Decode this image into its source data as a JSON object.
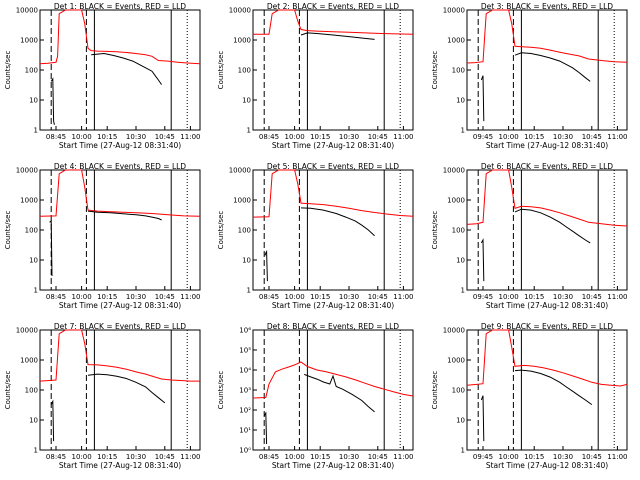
{
  "chart_data": [
    {
      "type": "line",
      "title": "Det 1: BLACK = Events, RED = LLD",
      "ylabel": "Counts/sec",
      "xlabel": "Start Time (27-Aug-12 08:31:40)",
      "x_ticks": [
        "08:45",
        "10:00",
        "10:15",
        "10:30",
        "10:45",
        "11:00"
      ],
      "y_ticks": [
        "1",
        "10",
        "100",
        "1000",
        "10000"
      ],
      "ylim": [
        1,
        12000
      ],
      "log_y": true,
      "grid": false,
      "series": [
        {
          "color": "#ff0000",
          "x": [
            0.0,
            0.05,
            0.1,
            0.11,
            0.12,
            0.16,
            0.26,
            0.28,
            0.3,
            0.32,
            0.36,
            0.42,
            0.48,
            0.54,
            0.6,
            0.66,
            0.7,
            0.74,
            0.8,
            0.86,
            0.92,
            1.0
          ],
          "y": [
            180,
            185,
            200,
            320,
            9000,
            12000,
            12000,
            4000,
            600,
            500,
            480,
            470,
            460,
            430,
            400,
            360,
            320,
            230,
            220,
            200,
            190,
            180
          ]
        },
        {
          "color": "#000000",
          "x": [
            0.07,
            0.075,
            0.08,
            0.085,
            0.09
          ],
          "y": [
            45,
            50,
            55,
            2,
            1.5
          ]
        },
        {
          "color": "#000000",
          "x": [
            0.32,
            0.36,
            0.4,
            0.46,
            0.52,
            0.58,
            0.62,
            0.66,
            0.7,
            0.72,
            0.74,
            0.76
          ],
          "y": [
            360,
            380,
            400,
            340,
            280,
            220,
            170,
            130,
            100,
            70,
            50,
            35
          ]
        }
      ]
    },
    {
      "type": "line",
      "title": "Det 2: BLACK = Events, RED = LLD",
      "ylabel": "Counts/sec",
      "xlabel": "Start Time (27-Aug-12 08:31:40)",
      "x_ticks": [
        "08:45",
        "10:00",
        "10:15",
        "10:30",
        "10:45",
        "11:00"
      ],
      "y_ticks": [
        "1",
        "10",
        "100",
        "1000",
        "10000"
      ],
      "ylim": [
        1,
        12000
      ],
      "log_y": true,
      "grid": false,
      "series": [
        {
          "color": "#ff0000",
          "x": [
            0.0,
            0.1,
            0.12,
            0.16,
            0.26,
            0.28,
            0.3,
            0.34,
            0.4,
            0.5,
            0.6,
            0.7,
            0.8,
            0.9,
            1.0
          ],
          "y": [
            1800,
            1800,
            9000,
            12000,
            12000,
            5000,
            2600,
            2400,
            2300,
            2200,
            2100,
            2000,
            1900,
            1850,
            1800
          ]
        },
        {
          "color": "#000000",
          "x": [
            0.3,
            0.34,
            0.4,
            0.5,
            0.6,
            0.7,
            0.76
          ],
          "y": [
            1700,
            2000,
            1900,
            1700,
            1500,
            1300,
            1200
          ]
        }
      ]
    },
    {
      "type": "line",
      "title": "Det 3: BLACK = Events, RED = LLD",
      "ylabel": "Counts/sec",
      "xlabel": "Start Time (27-Aug-12 08:31:40)",
      "x_ticks": [
        "09:45",
        "10:00",
        "10:15",
        "10:30",
        "10:45",
        "11:00"
      ],
      "y_ticks": [
        "1",
        "10",
        "100",
        "1000",
        "10000"
      ],
      "ylim": [
        1,
        12000
      ],
      "log_y": true,
      "grid": false,
      "series": [
        {
          "color": "#ff0000",
          "x": [
            0.0,
            0.05,
            0.1,
            0.12,
            0.16,
            0.26,
            0.28,
            0.3,
            0.34,
            0.4,
            0.46,
            0.52,
            0.58,
            0.64,
            0.7,
            0.76,
            0.84,
            0.92,
            1.0
          ],
          "y": [
            190,
            195,
            210,
            9000,
            12000,
            12000,
            4000,
            700,
            680,
            650,
            600,
            520,
            440,
            380,
            330,
            260,
            230,
            210,
            200
          ]
        },
        {
          "color": "#000000",
          "x": [
            0.09,
            0.095,
            0.1,
            0.105
          ],
          "y": [
            50,
            60,
            70,
            2
          ]
        },
        {
          "color": "#000000",
          "x": [
            0.3,
            0.34,
            0.4,
            0.46,
            0.52,
            0.58,
            0.62,
            0.66,
            0.7,
            0.74,
            0.77
          ],
          "y": [
            350,
            420,
            400,
            340,
            280,
            220,
            170,
            130,
            90,
            60,
            45
          ]
        }
      ]
    },
    {
      "type": "line",
      "title": "Det 4: BLACK = Events, RED = LLD",
      "ylabel": "Counts/sec",
      "xlabel": "Start Time (27-Aug-12 08:31:40)",
      "x_ticks": [
        "08:45",
        "10:00",
        "10:15",
        "10:30",
        "10:45",
        "11:00"
      ],
      "y_ticks": [
        "1",
        "10",
        "100",
        "1000",
        "10000"
      ],
      "ylim": [
        1,
        12000
      ],
      "log_y": true,
      "grid": false,
      "series": [
        {
          "color": "#ff0000",
          "x": [
            0.0,
            0.1,
            0.12,
            0.16,
            0.26,
            0.28,
            0.3,
            0.36,
            0.44,
            0.52,
            0.6,
            0.7,
            0.8,
            0.9,
            1.0
          ],
          "y": [
            320,
            330,
            9000,
            12000,
            12000,
            3000,
            520,
            480,
            460,
            440,
            420,
            400,
            360,
            330,
            320
          ]
        },
        {
          "color": "#000000",
          "x": [
            0.06,
            0.065,
            0.07,
            0.075
          ],
          "y": [
            200,
            210,
            220,
            3
          ]
        },
        {
          "color": "#000000",
          "x": [
            0.3,
            0.36,
            0.44,
            0.52,
            0.6,
            0.66,
            0.7,
            0.74,
            0.76
          ],
          "y": [
            480,
            440,
            420,
            390,
            360,
            330,
            300,
            270,
            240
          ]
        }
      ]
    },
    {
      "type": "line",
      "title": "Det 5: BLACK = Events, RED = LLD",
      "ylabel": "Counts/sec",
      "xlabel": "Start Time (27-Aug-12 08:31:40)",
      "x_ticks": [
        "08:45",
        "10:00",
        "10:15",
        "10:30",
        "10:45",
        "11:00"
      ],
      "y_ticks": [
        "1",
        "10",
        "100",
        "1000",
        "10000"
      ],
      "ylim": [
        1,
        12000
      ],
      "log_y": true,
      "grid": false,
      "series": [
        {
          "color": "#ff0000",
          "x": [
            0.0,
            0.1,
            0.12,
            0.16,
            0.26,
            0.28,
            0.3,
            0.36,
            0.44,
            0.52,
            0.6,
            0.68,
            0.76,
            0.84,
            0.92,
            1.0
          ],
          "y": [
            300,
            310,
            9000,
            12000,
            12000,
            4000,
            900,
            850,
            800,
            700,
            600,
            500,
            430,
            380,
            340,
            320
          ]
        },
        {
          "color": "#000000",
          "x": [
            0.075,
            0.08,
            0.085,
            0.09
          ],
          "y": [
            15,
            18,
            20,
            2
          ]
        },
        {
          "color": "#000000",
          "x": [
            0.3,
            0.36,
            0.44,
            0.52,
            0.58,
            0.64,
            0.68,
            0.72,
            0.76
          ],
          "y": [
            620,
            600,
            520,
            400,
            300,
            220,
            160,
            110,
            70
          ]
        }
      ]
    },
    {
      "type": "line",
      "title": "Det 6: BLACK = Events, RED = LLD",
      "ylabel": "Counts/sec",
      "xlabel": "Start Time (27-Aug-12 08:31:40)",
      "x_ticks": [
        "09:45",
        "10:00",
        "10:15",
        "10:30",
        "10:45",
        "11:00"
      ],
      "y_ticks": [
        "1",
        "10",
        "100",
        "1000",
        "10000"
      ],
      "ylim": [
        1,
        12000
      ],
      "log_y": true,
      "grid": false,
      "series": [
        {
          "color": "#ff0000",
          "x": [
            0.0,
            0.06,
            0.1,
            0.12,
            0.16,
            0.26,
            0.28,
            0.3,
            0.34,
            0.4,
            0.46,
            0.52,
            0.58,
            0.64,
            0.7,
            0.76,
            0.84,
            0.92,
            1.0
          ],
          "y": [
            170,
            180,
            200,
            9000,
            12000,
            12000,
            3000,
            600,
            700,
            680,
            620,
            520,
            420,
            330,
            260,
            200,
            180,
            160,
            150
          ]
        },
        {
          "color": "#000000",
          "x": [
            0.09,
            0.095,
            0.1,
            0.105
          ],
          "y": [
            40,
            45,
            50,
            2
          ]
        },
        {
          "color": "#000000",
          "x": [
            0.3,
            0.34,
            0.4,
            0.46,
            0.52,
            0.58,
            0.62,
            0.66,
            0.7,
            0.74,
            0.77
          ],
          "y": [
            450,
            560,
            520,
            420,
            300,
            200,
            140,
            100,
            70,
            50,
            40
          ]
        }
      ]
    },
    {
      "type": "line",
      "title": "Det 7: BLACK = Events, RED = LLD",
      "ylabel": "Counts/sec",
      "xlabel": "Start Time (27-Aug-12 08:31:40)",
      "x_ticks": [
        "08:45",
        "10:00",
        "10:15",
        "10:30",
        "10:45",
        "11:00"
      ],
      "y_ticks": [
        "1",
        "10",
        "100",
        "1000",
        "10000"
      ],
      "ylim": [
        1,
        12000
      ],
      "log_y": true,
      "grid": false,
      "series": [
        {
          "color": "#ff0000",
          "x": [
            0.0,
            0.06,
            0.1,
            0.12,
            0.16,
            0.26,
            0.28,
            0.3,
            0.36,
            0.42,
            0.48,
            0.54,
            0.6,
            0.66,
            0.72,
            0.76,
            0.82,
            0.88,
            0.94,
            1.0
          ],
          "y": [
            220,
            230,
            240,
            9000,
            12000,
            12000,
            4000,
            800,
            780,
            720,
            650,
            560,
            450,
            380,
            300,
            260,
            240,
            230,
            220,
            220
          ]
        },
        {
          "color": "#000000",
          "x": [
            0.07,
            0.075,
            0.08,
            0.085
          ],
          "y": [
            35,
            40,
            45,
            2
          ]
        },
        {
          "color": "#000000",
          "x": [
            0.3,
            0.36,
            0.42,
            0.48,
            0.54,
            0.6,
            0.66,
            0.7,
            0.74,
            0.78
          ],
          "y": [
            350,
            380,
            360,
            320,
            270,
            200,
            140,
            90,
            60,
            40
          ]
        }
      ]
    },
    {
      "type": "line",
      "title": "Det 8: BLACK = Events, RED = LLD",
      "ylabel": "Counts/sec",
      "xlabel": "Start Time (27-Aug-12 08:31:40)",
      "x_ticks": [
        "08:45",
        "10:00",
        "10:15",
        "10:30",
        "10:45",
        "11:00"
      ],
      "y_ticks": [
        "10⁰",
        "10¹",
        "10²",
        "10³",
        "10⁴",
        "10⁵",
        "10⁶"
      ],
      "ylim": [
        1,
        1000000
      ],
      "log_y": true,
      "grid": false,
      "series": [
        {
          "color": "#ff0000",
          "x": [
            0.0,
            0.08,
            0.1,
            0.14,
            0.18,
            0.22,
            0.26,
            0.3,
            0.34,
            0.4,
            0.46,
            0.52,
            0.58,
            0.64,
            0.7,
            0.76,
            0.82,
            0.88,
            0.94,
            1.0
          ],
          "y": [
            400,
            420,
            2000,
            8000,
            11000,
            14000,
            18000,
            25000,
            15000,
            10000,
            8000,
            6000,
            4500,
            3200,
            2200,
            1500,
            1100,
            800,
            600,
            500
          ]
        },
        {
          "color": "#000000",
          "x": [
            0.07,
            0.075,
            0.08,
            0.085
          ],
          "y": [
            50,
            60,
            70,
            2
          ]
        },
        {
          "color": "#000000",
          "x": [
            0.32,
            0.36,
            0.4,
            0.44,
            0.48,
            0.5,
            0.52,
            0.56,
            0.62,
            0.68,
            0.72,
            0.76
          ],
          "y": [
            6000,
            4500,
            3500,
            2500,
            2000,
            5000,
            1500,
            1100,
            600,
            300,
            150,
            80
          ]
        }
      ]
    },
    {
      "type": "line",
      "title": "Det 9: BLACK = Events, RED = LLD",
      "ylabel": "Counts/sec",
      "xlabel": "Start Time (27-Aug-12 08:31:40)",
      "x_ticks": [
        "09:45",
        "10:00",
        "10:15",
        "10:30",
        "10:45",
        "11:00"
      ],
      "y_ticks": [
        "1",
        "10",
        "100",
        "1000",
        "10000"
      ],
      "ylim": [
        1,
        12000
      ],
      "log_y": true,
      "grid": false,
      "series": [
        {
          "color": "#ff0000",
          "x": [
            0.0,
            0.06,
            0.1,
            0.12,
            0.16,
            0.26,
            0.28,
            0.3,
            0.36,
            0.42,
            0.48,
            0.54,
            0.6,
            0.66,
            0.72,
            0.78,
            0.84,
            0.9,
            0.96,
            1.0
          ],
          "y": [
            160,
            170,
            180,
            9000,
            12000,
            12000,
            3000,
            700,
            750,
            700,
            620,
            520,
            420,
            330,
            260,
            200,
            170,
            160,
            150,
            170
          ]
        },
        {
          "color": "#000000",
          "x": [
            0.09,
            0.095,
            0.1,
            0.105
          ],
          "y": [
            50,
            60,
            70,
            2
          ]
        },
        {
          "color": "#000000",
          "x": [
            0.3,
            0.34,
            0.4,
            0.46,
            0.52,
            0.58,
            0.62,
            0.66,
            0.7,
            0.74,
            0.78
          ],
          "y": [
            500,
            520,
            480,
            400,
            300,
            200,
            140,
            100,
            70,
            50,
            35
          ]
        }
      ]
    }
  ]
}
